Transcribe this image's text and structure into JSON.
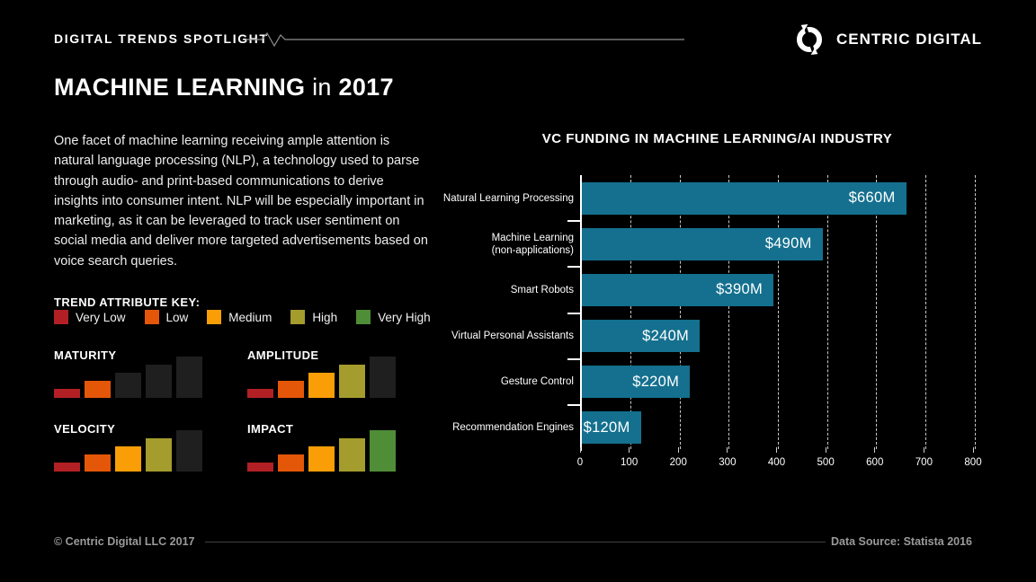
{
  "header": {
    "eyebrow": "DIGITAL TRENDS SPOTLIGHT",
    "brand": "CENTRIC DIGITAL"
  },
  "title": {
    "main": "MACHINE LEARNING",
    "connector": "in",
    "year": "2017"
  },
  "intro": "One facet of machine learning receiving ample attention is natural language processing (NLP), a technology used to parse through audio- and print-based communications to derive insights into consumer intent. NLP will be especially important in marketing, as it can be leveraged to track user sentiment on social media and deliver more targeted advertisements based on voice search queries.",
  "trend_key": {
    "title": "TREND ATTRIBUTE KEY:",
    "levels": [
      {
        "label": "Very Low",
        "color": "#b22025"
      },
      {
        "label": "Low",
        "color": "#e55708"
      },
      {
        "label": "Medium",
        "color": "#f99e06"
      },
      {
        "label": "High",
        "color": "#a49c2d"
      },
      {
        "label": "Very High",
        "color": "#4f8d37"
      }
    ],
    "unlit_color": "#1f1f1f"
  },
  "trends": [
    {
      "name": "MATURITY",
      "level": 2,
      "level_label": "Low"
    },
    {
      "name": "AMPLITUDE",
      "level": 4,
      "level_label": "High"
    },
    {
      "name": "VELOCITY",
      "level": 4,
      "level_label": "High"
    },
    {
      "name": "IMPACT",
      "level": 5,
      "level_label": "Very High"
    }
  ],
  "chart_data": {
    "type": "bar",
    "orientation": "horizontal",
    "title": "VC FUNDING IN MACHINE LEARNING/AI INDUSTRY",
    "categories": [
      "Natural Learning Processing",
      "Machine Learning\n(non-applications)",
      "Smart Robots",
      "Virtual Personal Assistants",
      "Gesture Control",
      "Recommendation Engines"
    ],
    "values": [
      660,
      490,
      390,
      240,
      220,
      120
    ],
    "value_labels": [
      "$660M",
      "$490M",
      "$390M",
      "$240M",
      "$220M",
      "$120M"
    ],
    "unit": "USD millions",
    "xlim": [
      0,
      800
    ],
    "x_ticks": [
      0,
      100,
      200,
      300,
      400,
      500,
      600,
      700,
      800
    ],
    "bar_color": "#14708e",
    "grid": "dashed-vertical",
    "legend_position": "none"
  },
  "footer": {
    "copyright": "© Centric Digital LLC 2017",
    "source": "Data Source: Statista 2016"
  }
}
